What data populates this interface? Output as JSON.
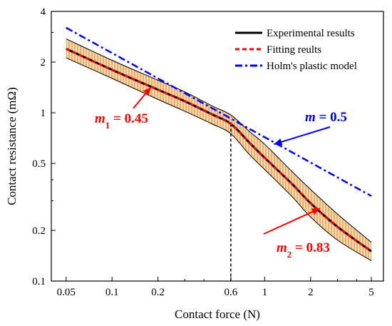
{
  "chart_data": {
    "type": "line",
    "xlabel": "Contact force (N)",
    "ylabel": "Contact resistance (mΩ)",
    "x_scale": "log",
    "y_scale": "log",
    "xlim": [
      0.04,
      6
    ],
    "ylim": [
      0.1,
      4
    ],
    "x_ticks": [
      0.05,
      0.1,
      0.2,
      0.6,
      1,
      2,
      5
    ],
    "x_tick_labels": [
      "0.05",
      "0.1",
      "0.2",
      "0.6",
      "1",
      "2",
      "5"
    ],
    "y_ticks": [
      0.1,
      0.2,
      0.5,
      1,
      2,
      4
    ],
    "y_tick_labels": [
      "0.1",
      "0.2",
      "0.5",
      "1",
      "2",
      "4"
    ],
    "grid": false,
    "legend_position": "top-right",
    "series": [
      {
        "name": "Experimental results",
        "color": "#000000",
        "style": "solid",
        "x": [
          0.05,
          0.1,
          0.2,
          0.3,
          0.45,
          0.6,
          0.8,
          1,
          1.5,
          2,
          3,
          5
        ],
        "y": [
          2.4,
          1.8,
          1.37,
          1.17,
          0.98,
          0.86,
          0.66,
          0.54,
          0.38,
          0.29,
          0.21,
          0.15
        ]
      },
      {
        "name": "Fitting reults",
        "color": "#ff0000",
        "style": "dashed",
        "x": [
          0.05,
          0.1,
          0.2,
          0.3,
          0.45,
          0.6,
          0.8,
          1,
          1.5,
          2,
          3,
          5
        ],
        "y": [
          2.4,
          1.8,
          1.37,
          1.17,
          0.98,
          0.86,
          0.66,
          0.54,
          0.38,
          0.29,
          0.21,
          0.15
        ]
      },
      {
        "name": "Holm's plastic model",
        "color": "#0000ff",
        "style": "dashdot",
        "x": [
          0.05,
          5
        ],
        "y": [
          3.2,
          0.32
        ]
      }
    ],
    "band": {
      "x": [
        0.05,
        0.1,
        0.2,
        0.3,
        0.45,
        0.6,
        0.8,
        1,
        1.5,
        2,
        3,
        5
      ],
      "upper": [
        2.75,
        2.05,
        1.56,
        1.33,
        1.1,
        0.97,
        0.77,
        0.65,
        0.45,
        0.35,
        0.25,
        0.17
      ],
      "lower": [
        2.12,
        1.6,
        1.2,
        1.02,
        0.86,
        0.75,
        0.56,
        0.46,
        0.32,
        0.24,
        0.175,
        0.132
      ],
      "fill_color": "#f6d9b0",
      "hatch_color": "#e08a2e"
    },
    "reference_line": {
      "x": 0.6,
      "style": "dashed",
      "color": "#000000"
    },
    "annotations": [
      {
        "text_var": "m",
        "sub": "1",
        "text_value": " = 0.45",
        "color": "#ff0000",
        "target": [
          0.18,
          1.42
        ]
      },
      {
        "text_var": "m",
        "sub": "",
        "text_value": " = 0.5",
        "color": "#0000ff",
        "target": [
          1.15,
          0.65
        ]
      },
      {
        "text_var": "m",
        "sub": "2",
        "text_value": " = 0.83",
        "color": "#ff0000",
        "target": [
          2.3,
          0.27
        ]
      }
    ]
  }
}
